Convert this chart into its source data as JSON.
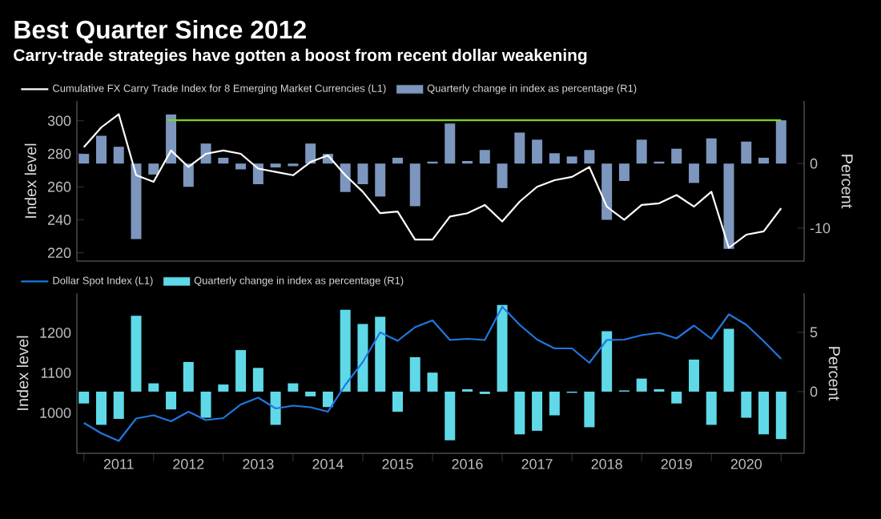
{
  "chart_data": [
    {
      "type": "bar",
      "title": "Best Quarter Since 2012",
      "subtitle": "Carry-trade strategies have gotten a boost from recent dollar weakening",
      "x": [
        2011,
        2011.25,
        2011.5,
        2011.75,
        2012,
        2012.25,
        2012.5,
        2012.75,
        2013,
        2013.25,
        2013.5,
        2013.75,
        2014,
        2014.25,
        2014.5,
        2014.75,
        2015,
        2015.25,
        2015.5,
        2015.75,
        2016,
        2016.25,
        2016.5,
        2016.75,
        2017,
        2017.25,
        2017.5,
        2017.75,
        2018,
        2018.25,
        2018.5,
        2018.75,
        2019,
        2019.25,
        2019.5,
        2019.75,
        2020,
        2020.25,
        2020.5,
        2020.75,
        2021
      ],
      "series": [
        {
          "name": "Cumulative FX Carry Trade Index for 8 Emerging Market Currencies (L1)",
          "type": "line",
          "axis": "y",
          "color": "#ffffff",
          "values": [
            284,
            296,
            304,
            267,
            263,
            282,
            272,
            280,
            282,
            280,
            271,
            269,
            267,
            275,
            279,
            267,
            257,
            244,
            245,
            228,
            228,
            242,
            244,
            249,
            239,
            251,
            260,
            264,
            266,
            272,
            248,
            240,
            249,
            250,
            255,
            248,
            257,
            223,
            231,
            233,
            247
          ]
        },
        {
          "name": "Quarterly change in index as percentage (R1)",
          "axis": "y2",
          "color": "#7d96bd",
          "values": [
            1.5,
            4.3,
            2.6,
            -11.7,
            -1.7,
            7.6,
            -3.6,
            3.1,
            0.9,
            -0.9,
            -3.2,
            -0.6,
            -0.4,
            3.1,
            1.5,
            -4.4,
            -3.2,
            -5.1,
            0.9,
            -6.6,
            0.3,
            6.2,
            0.4,
            2.1,
            -3.8,
            4.8,
            3.7,
            1.6,
            1.1,
            2.1,
            -8.7,
            -2.7,
            3.7,
            0.3,
            2.3,
            -3.0,
            3.9,
            -13.2,
            3.4,
            0.9,
            6.7
          ]
        },
        {
          "type": "line",
          "axis": "y2",
          "color": "#7cd320",
          "x": [
            2012.2,
            2021
          ],
          "values": [
            6.7,
            6.7
          ]
        }
      ],
      "xlim": [
        2010.9,
        2021.33
      ],
      "ylim": [
        215,
        312
      ],
      "yticks": [
        220,
        240,
        260,
        280,
        300
      ],
      "y2lim": [
        -15.1,
        9.7
      ],
      "y2ticks": [
        -10,
        0
      ],
      "ylabel": "Index level",
      "y2label": "Percent",
      "legend": "top left",
      "tick_labels": "y"
    },
    {
      "type": "bar",
      "x": [
        2011,
        2011.25,
        2011.5,
        2011.75,
        2012,
        2012.25,
        2012.5,
        2012.75,
        2013,
        2013.25,
        2013.5,
        2013.75,
        2014,
        2014.25,
        2014.5,
        2014.75,
        2015,
        2015.25,
        2015.5,
        2015.75,
        2016,
        2016.25,
        2016.5,
        2016.75,
        2017,
        2017.25,
        2017.5,
        2017.75,
        2018,
        2018.25,
        2018.5,
        2018.75,
        2019,
        2019.25,
        2019.5,
        2019.75,
        2020,
        2020.25,
        2020.5,
        2020.75,
        2021
      ],
      "series": [
        {
          "name": "Dollar Spot Index (L1)",
          "type": "line",
          "axis": "y",
          "color": "#1f78e0",
          "values": [
            975,
            949,
            930,
            986,
            994,
            979,
            1003,
            982,
            987,
            1021,
            1038,
            1011,
            1018,
            1014,
            1003,
            1070,
            1127,
            1201,
            1180,
            1214,
            1231,
            1182,
            1185,
            1182,
            1265,
            1220,
            1183,
            1161,
            1161,
            1125,
            1182,
            1183,
            1194,
            1200,
            1186,
            1218,
            1185,
            1246,
            1220,
            1179,
            1135
          ]
        },
        {
          "name": "Quarterly change in index as percentage (R1)",
          "axis": "y2",
          "color": "#5fd9e8",
          "values": [
            -1.0,
            -2.8,
            -2.3,
            6.4,
            0.7,
            -1.5,
            2.5,
            -2.2,
            0.6,
            3.5,
            2.0,
            -2.8,
            0.7,
            -0.4,
            -1.3,
            6.9,
            5.7,
            6.3,
            -1.7,
            2.9,
            1.6,
            -4.1,
            0.2,
            -0.2,
            7.3,
            -3.6,
            -3.3,
            -2.0,
            -0.1,
            -3.0,
            5.1,
            0.1,
            1.1,
            0.2,
            -1.0,
            2.7,
            -2.8,
            5.3,
            -2.2,
            -3.6,
            -4.0
          ]
        }
      ],
      "xlim": [
        2010.9,
        2021.33
      ],
      "xticks": [
        {
          "value": 2011,
          "label": null
        },
        {
          "value": 2011.5,
          "label": "2011"
        },
        {
          "value": 2012,
          "label": null
        },
        {
          "value": 2012.5,
          "label": "2012"
        },
        {
          "value": 2013,
          "label": null
        },
        {
          "value": 2013.5,
          "label": "2013"
        },
        {
          "value": 2014,
          "label": null
        },
        {
          "value": 2014.5,
          "label": "2014"
        },
        {
          "value": 2015,
          "label": null
        },
        {
          "value": 2015.5,
          "label": "2015"
        },
        {
          "value": 2016,
          "label": null
        },
        {
          "value": 2016.5,
          "label": "2016"
        },
        {
          "value": 2017,
          "label": null
        },
        {
          "value": 2017.5,
          "label": "2017"
        },
        {
          "value": 2018,
          "label": null
        },
        {
          "value": 2018.5,
          "label": "2018"
        },
        {
          "value": 2019,
          "label": null
        },
        {
          "value": 2019.5,
          "label": "2019"
        },
        {
          "value": 2020,
          "label": null
        },
        {
          "value": 2020.5,
          "label": "2020"
        },
        {
          "value": 2021,
          "label": null
        }
      ],
      "ylim": [
        899,
        1299
      ],
      "yticks": [
        1000,
        1100,
        1200
      ],
      "y2lim": [
        -5.2,
        8.3
      ],
      "y2ticks": [
        0,
        5
      ],
      "ylabel": "Index level",
      "y2label": "Percent",
      "legend": "top left"
    }
  ]
}
